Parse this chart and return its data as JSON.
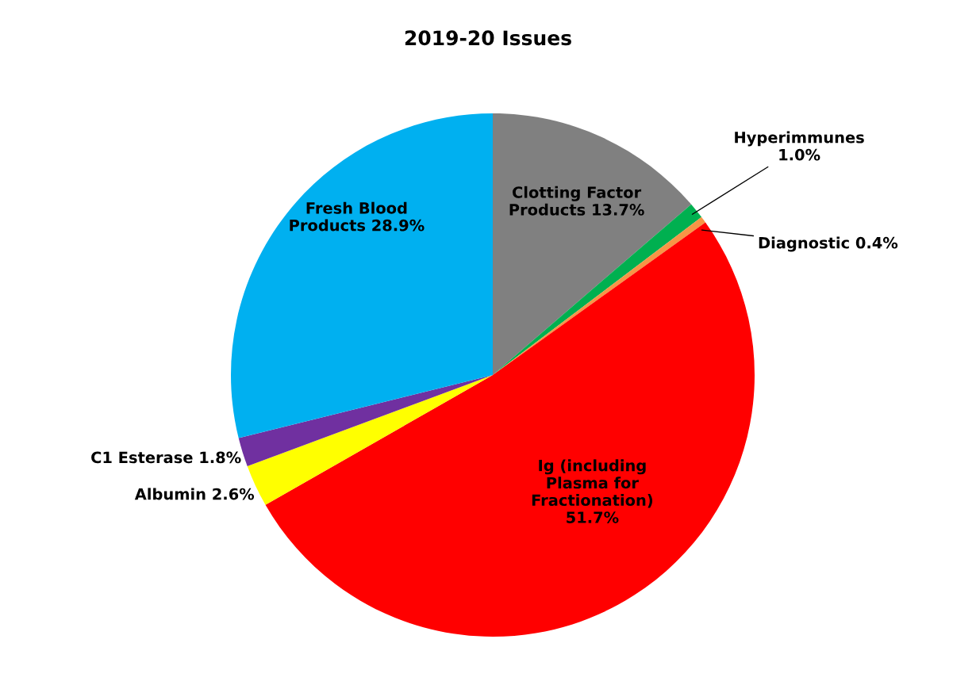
{
  "chart_data": {
    "type": "pie",
    "title": "2019-20 Issues",
    "categories": [
      "Clotting Factor\nProducts",
      "Hyperimmunes",
      "Diagnostic",
      "Ig (including\nPlasma for\nFractionation)",
      "Albumin",
      "C1 Esterase",
      "Fresh Blood\nProducts"
    ],
    "values": [
      13.7,
      1.0,
      0.4,
      51.7,
      2.6,
      1.8,
      28.9
    ],
    "value_labels": [
      "13.7%",
      "1.0%",
      "0.4%",
      "51.7%",
      "2.6%",
      "1.8%",
      "28.9%"
    ],
    "colors": [
      "#808080",
      "#00b050",
      "#f79646",
      "#ff0000",
      "#ffff00",
      "#7030a0",
      "#00b0f0"
    ]
  }
}
